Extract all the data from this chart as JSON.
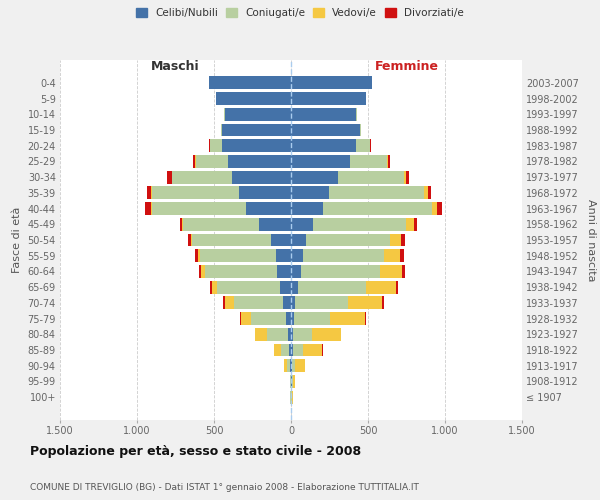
{
  "age_groups": [
    "100+",
    "95-99",
    "90-94",
    "85-89",
    "80-84",
    "75-79",
    "70-74",
    "65-69",
    "60-64",
    "55-59",
    "50-54",
    "45-49",
    "40-44",
    "35-39",
    "30-34",
    "25-29",
    "20-24",
    "15-19",
    "10-14",
    "5-9",
    "0-4"
  ],
  "birth_years": [
    "≤ 1907",
    "1908-1912",
    "1913-1917",
    "1918-1922",
    "1923-1927",
    "1928-1932",
    "1933-1937",
    "1938-1942",
    "1943-1947",
    "1948-1952",
    "1953-1957",
    "1958-1962",
    "1963-1967",
    "1968-1972",
    "1973-1977",
    "1978-1982",
    "1983-1987",
    "1988-1992",
    "1993-1997",
    "1998-2002",
    "2003-2007"
  ],
  "colors": {
    "celibi": "#4472a8",
    "coniugati": "#b8cfa0",
    "vedovi": "#f5c842",
    "divorziati": "#d01010"
  },
  "maschi": {
    "celibi": [
      2,
      2,
      5,
      10,
      18,
      30,
      50,
      70,
      90,
      100,
      130,
      210,
      290,
      340,
      380,
      410,
      450,
      445,
      430,
      490,
      530
    ],
    "coniugati": [
      2,
      3,
      18,
      55,
      140,
      230,
      320,
      410,
      470,
      490,
      510,
      490,
      610,
      560,
      390,
      210,
      75,
      12,
      3,
      0,
      0
    ],
    "vedovi": [
      2,
      4,
      22,
      45,
      75,
      65,
      58,
      32,
      22,
      16,
      12,
      11,
      6,
      6,
      4,
      3,
      0,
      0,
      0,
      0,
      0
    ],
    "divorziati": [
      0,
      0,
      0,
      0,
      3,
      6,
      11,
      13,
      16,
      16,
      16,
      13,
      42,
      32,
      32,
      16,
      6,
      0,
      0,
      0,
      0
    ]
  },
  "femmine": {
    "celibi": [
      3,
      6,
      6,
      12,
      12,
      18,
      28,
      45,
      65,
      75,
      95,
      145,
      205,
      245,
      305,
      385,
      425,
      445,
      425,
      485,
      525
    ],
    "coniugati": [
      2,
      4,
      22,
      65,
      125,
      235,
      340,
      440,
      510,
      530,
      550,
      600,
      710,
      620,
      430,
      240,
      85,
      12,
      3,
      0,
      0
    ],
    "vedovi": [
      6,
      18,
      65,
      125,
      185,
      225,
      225,
      195,
      145,
      105,
      72,
      52,
      32,
      22,
      12,
      6,
      3,
      0,
      0,
      0,
      0
    ],
    "divorziati": [
      0,
      0,
      0,
      3,
      3,
      6,
      9,
      16,
      22,
      22,
      22,
      22,
      32,
      22,
      16,
      11,
      6,
      0,
      0,
      0,
      0
    ]
  },
  "title": "Popolazione per età, sesso e stato civile - 2008",
  "subtitle": "COMUNE DI TREVIGLIO (BG) - Dati ISTAT 1° gennaio 2008 - Elaborazione TUTTITALIA.IT",
  "xlabel_maschi": "Maschi",
  "xlabel_femmine": "Femmine",
  "ylabel_left": "Fasce di età",
  "ylabel_right": "Anni di nascita",
  "xticklabels": [
    "1.500",
    "1.000",
    "500",
    "0",
    "500",
    "1.000",
    "1.500"
  ],
  "bg_color": "#f0f0f0",
  "plot_bg": "#ffffff",
  "legend_labels": [
    "Celibi/Nubili",
    "Coniugati/e",
    "Vedovi/e",
    "Divorziati/e"
  ]
}
